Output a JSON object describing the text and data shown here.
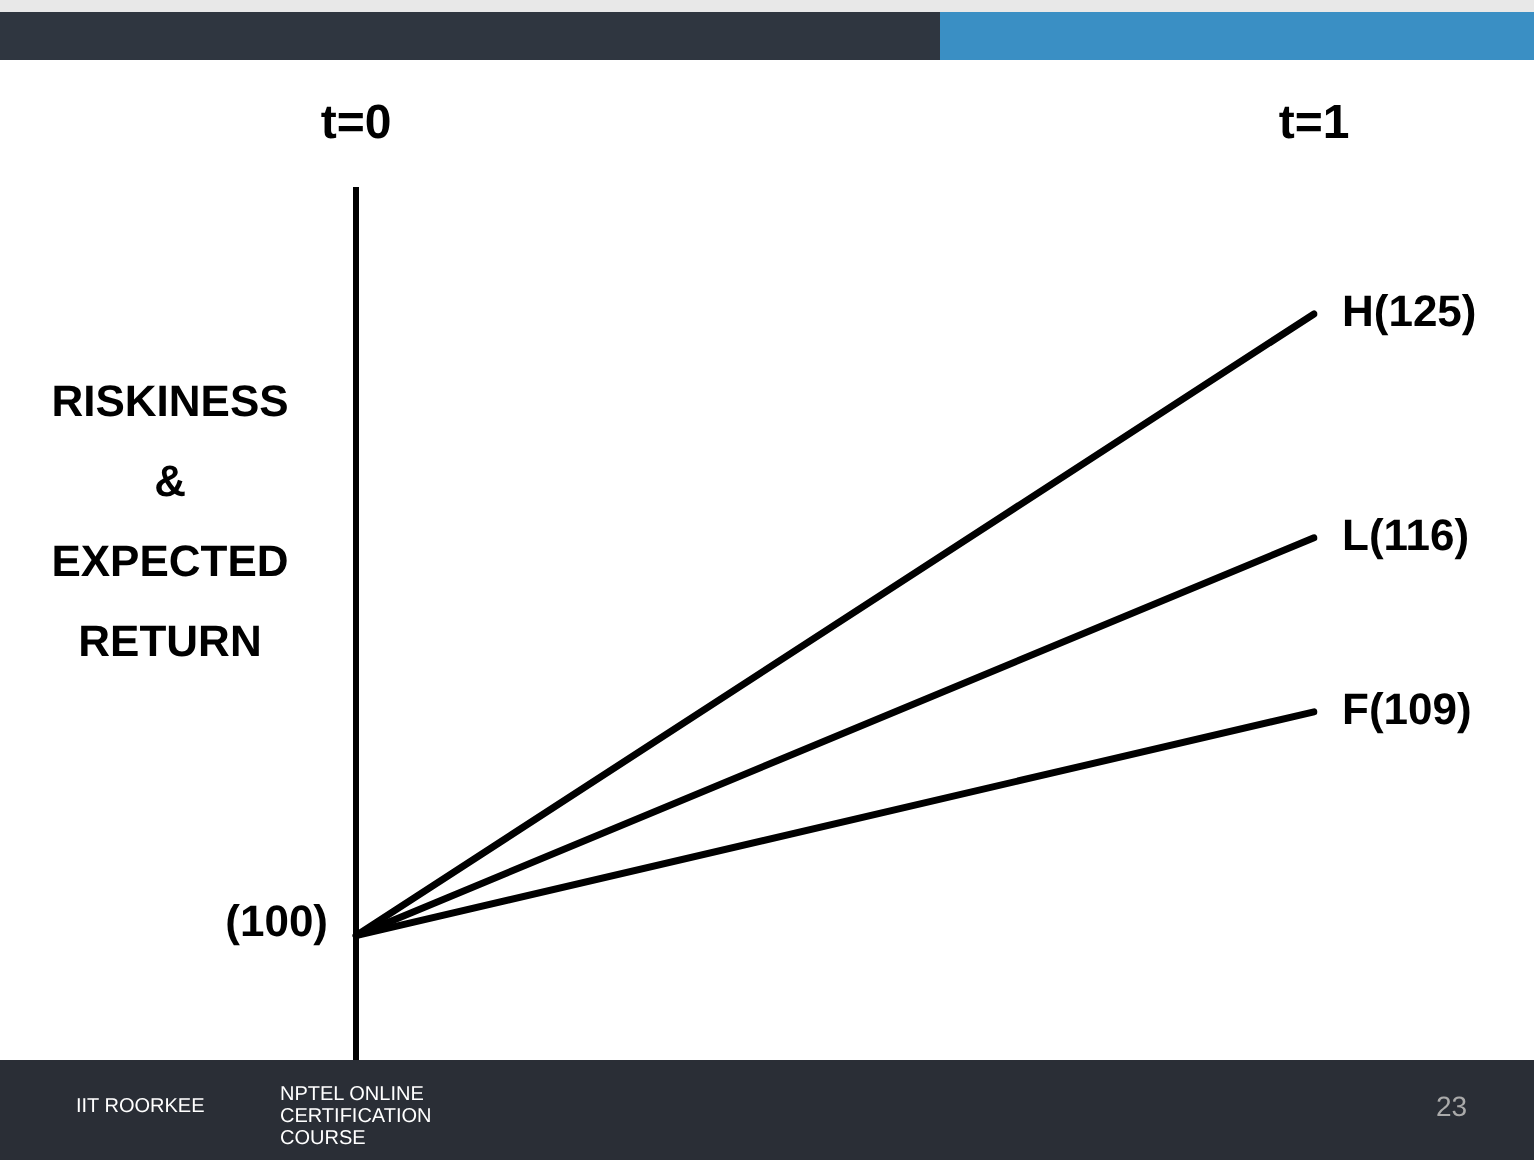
{
  "chart_data": {
    "type": "line",
    "categories": [
      "t=0",
      "t=1"
    ],
    "ylabel": "RISKINESS & EXPECTED RETURN",
    "series": [
      {
        "color": "#000000",
        "values": [
          100,
          125
        ],
        "value_labels": [
          "(100)",
          "H(125)"
        ]
      },
      {
        "color": "#000000",
        "values": [
          100,
          116
        ],
        "value_labels": [
          null,
          "L(116)"
        ]
      },
      {
        "color": "#000000",
        "values": [
          100,
          109
        ],
        "value_labels": [
          null,
          "F(109)"
        ]
      }
    ],
    "tick_labels": "x",
    "legend": false,
    "marker": "none",
    "line_style": "solid",
    "annotations": [
      "IIT ROORKEE",
      "NPTEL ONLINE CERTIFICATION COURSE",
      "23"
    ]
  }
}
